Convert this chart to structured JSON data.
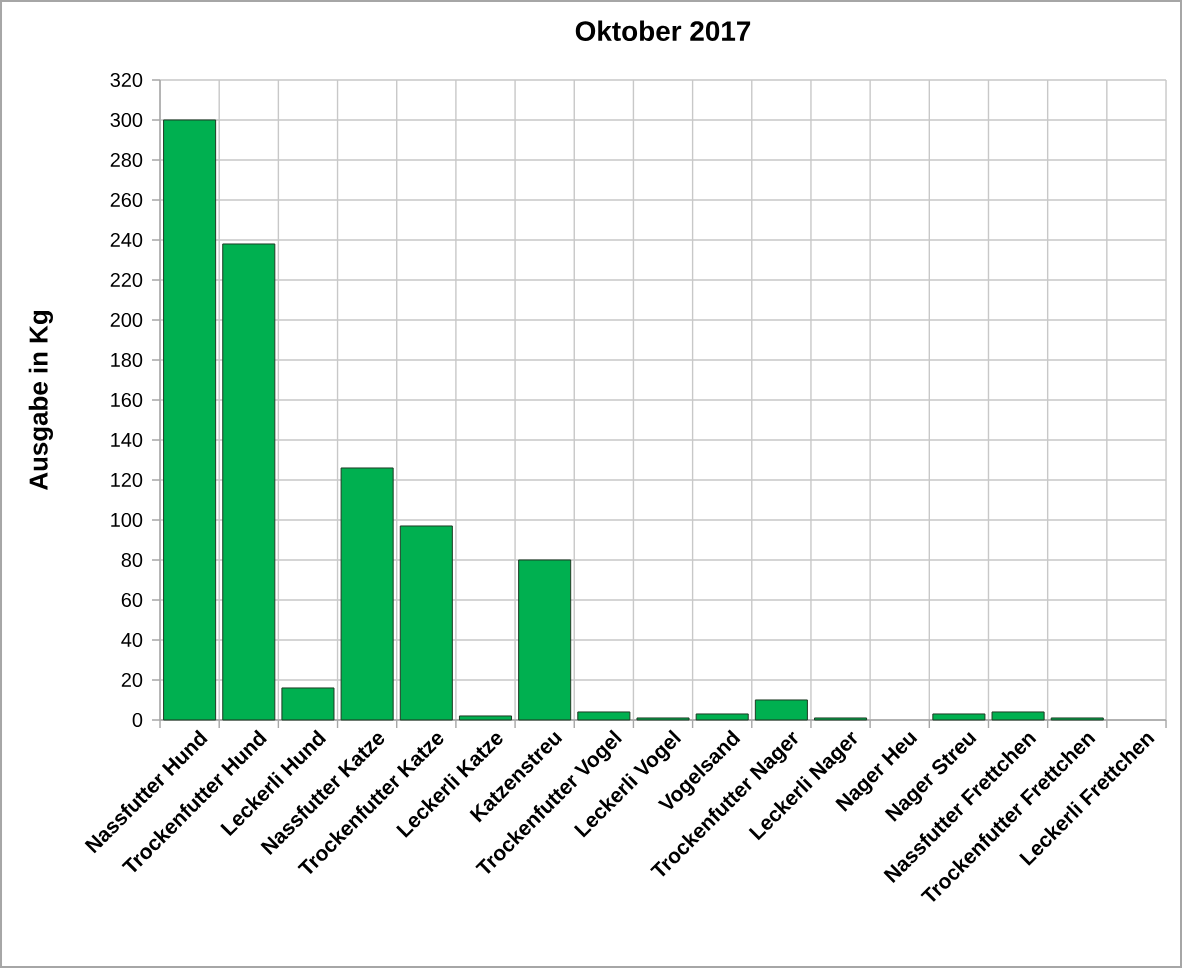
{
  "chart_data": {
    "type": "bar",
    "title": "Oktober 2017",
    "ylabel": "Ausgabe in Kg",
    "categories": [
      "Nassfutter Hund",
      "Trockenfutter Hund",
      "Leckerli Hund",
      "Nassfutter Katze",
      "Trockenfutter Katze",
      "Leckerli Katze",
      "Katzenstreu",
      "Trockenfutter Vogel",
      "Leckerli Vogel",
      "Vogelsand",
      "Trockenfutter Nager",
      "Leckerli Nager",
      "Nager Heu",
      "Nager Streu",
      "Nassfutter Frettchen",
      "Trockenfutter Frettchen",
      "Leckerli Frettchen"
    ],
    "values": [
      300,
      238,
      16,
      126,
      97,
      2,
      80,
      4,
      1,
      3,
      10,
      1,
      null,
      3,
      4,
      1,
      null
    ],
    "color": "#00b050",
    "ylim": [
      0,
      320
    ],
    "yticks": [
      0,
      20,
      40,
      60,
      80,
      100,
      120,
      140,
      160,
      180,
      200,
      220,
      240,
      260,
      280,
      300,
      320
    ],
    "grid": true
  }
}
